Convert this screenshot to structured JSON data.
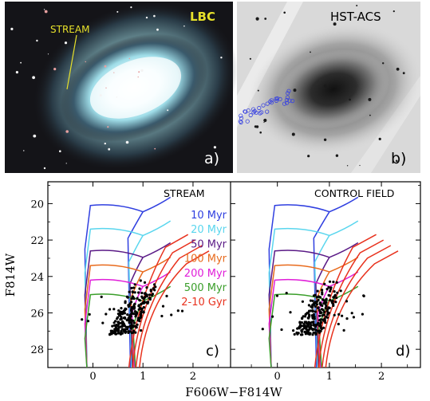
{
  "panel_a": {
    "label": "a)",
    "instrument": "LBC",
    "annotation": "STREAM"
  },
  "panel_b": {
    "label": "b)",
    "instrument": "HST-ACS"
  },
  "panel_c": {
    "label": "c)",
    "title": "STREAM"
  },
  "panel_d": {
    "label": "d)",
    "title": "CONTROL FIELD"
  },
  "colors": {
    "10 Myr": "#2f3fe0",
    "20 Myr": "#5ad6ee",
    "50 Myr": "#5a1a86",
    "100 Myr": "#e86a1c",
    "200 Myr": "#e01ed8",
    "500 Myr": "#3a9e2a",
    "2-10 Gyr": "#e8321e"
  },
  "chart_data": [
    {
      "type": "scatter",
      "panel": "c",
      "xlabel": "F606W−F814W",
      "ylabel": "F814W",
      "xlim": [
        -0.9,
        2.75
      ],
      "ylim": [
        29.0,
        18.8
      ],
      "y_inverted": true,
      "xticks": [
        "0",
        "1",
        "2"
      ],
      "yticks": [
        "20",
        "22",
        "24",
        "26",
        "28"
      ],
      "legend": {
        "placement": "right",
        "entries": [
          "10 Myr",
          "20 Myr",
          "50 Myr",
          "100 Myr",
          "200 Myr",
          "500 Myr",
          "2-10 Gyr"
        ]
      },
      "series": [
        {
          "name": "10 Myr",
          "mag": 20.0
        },
        {
          "name": "20 Myr",
          "mag": 21.3
        },
        {
          "name": "50 Myr",
          "mag": 22.5
        },
        {
          "name": "100 Myr",
          "mag": 23.3
        },
        {
          "name": "200 Myr",
          "mag": 24.1
        },
        {
          "name": "500 Myr",
          "mag": 24.9
        },
        {
          "name": "2-10 Gyr",
          "mag": 25.7
        }
      ]
    },
    {
      "type": "scatter",
      "panel": "d",
      "xlabel": "F606W−F814W",
      "xlim": [
        -0.9,
        2.75
      ],
      "ylim": [
        29.0,
        18.8
      ],
      "y_inverted": true,
      "xticks": [
        "0",
        "1",
        "2"
      ]
    }
  ]
}
